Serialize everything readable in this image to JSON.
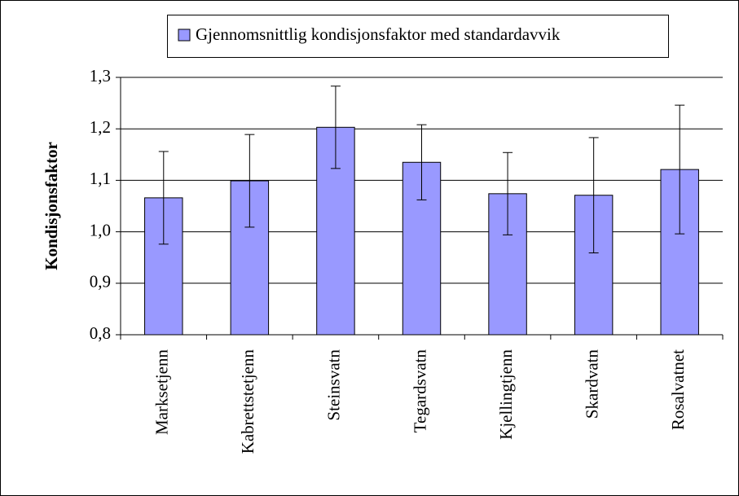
{
  "chart_data": {
    "type": "bar",
    "y_label": "Kondisjonsfaktor",
    "categories": [
      "Marksetjenn",
      "Kabrettstetjenn",
      "Steinsvatn",
      "Tegardsvatn",
      "Kjellingtjenn",
      "Skardvatn",
      "Rosalvatnet"
    ],
    "series": [
      {
        "name": "Gjennomsnittlig kondisjonsfaktor med standardavvik",
        "color": "#9999ff",
        "values": [
          1.066,
          1.099,
          1.203,
          1.135,
          1.074,
          1.071,
          1.121
        ],
        "errors": [
          0.09,
          0.09,
          0.08,
          0.073,
          0.08,
          0.112,
          0.125
        ]
      }
    ],
    "ylim": [
      0.8,
      1.3
    ],
    "yticks": [
      {
        "value": 0.8,
        "label": "0,8"
      },
      {
        "value": 0.9,
        "label": "0,9"
      },
      {
        "value": 1.0,
        "label": "1,0"
      },
      {
        "value": 1.1,
        "label": "1,1"
      },
      {
        "value": 1.2,
        "label": "1,2"
      },
      {
        "value": 1.3,
        "label": "1,3"
      }
    ],
    "grid": true,
    "legend": "top"
  }
}
